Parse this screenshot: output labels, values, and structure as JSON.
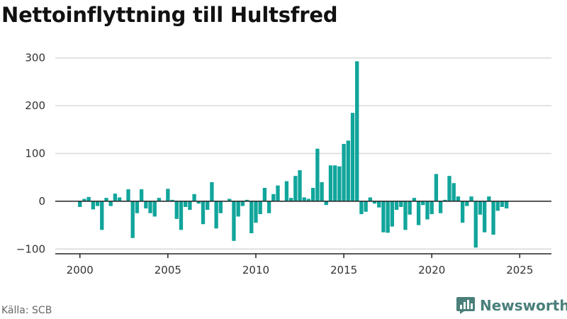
{
  "title": "Nettoinflyttning till Hultsfred",
  "source": "Källa: SCB",
  "brand": {
    "name": "Newsworthy",
    "icon": "chart-bubble-icon"
  },
  "colors": {
    "bar": "#11a59b",
    "grid": "#d9d9d9",
    "axis": "#222222",
    "brand": "#4a7f7a"
  },
  "chart_data": {
    "type": "bar",
    "title": "Nettoinflyttning till Hultsfred",
    "xlabel": "",
    "ylabel": "",
    "grid": true,
    "ylim": [
      -110,
      310
    ],
    "yticks": [
      -100,
      0,
      100,
      200,
      300
    ],
    "ytick_labels": [
      "−100",
      "0",
      "100",
      "200",
      "300"
    ],
    "xlim": [
      1998.6,
      2026.8
    ],
    "xticks": [
      2000,
      2005,
      2010,
      2015,
      2020,
      2025
    ],
    "xtick_labels": [
      "2000",
      "2005",
      "2010",
      "2015",
      "2020",
      "2025"
    ],
    "bar_unit": "quarter",
    "start_quarter": "2000-Q1",
    "values": [
      -12,
      5,
      9,
      -17,
      -10,
      -60,
      7,
      -10,
      16,
      8,
      0,
      25,
      -77,
      -25,
      25,
      -15,
      -25,
      -32,
      7,
      0,
      26,
      3,
      -37,
      -60,
      -12,
      -18,
      15,
      -5,
      -48,
      -18,
      40,
      -57,
      -25,
      0,
      5,
      -83,
      -32,
      -10,
      3,
      -67,
      -45,
      -27,
      28,
      -25,
      15,
      33,
      0,
      42,
      7,
      53,
      65,
      8,
      5,
      28,
      110,
      40,
      -8,
      75,
      75,
      73,
      120,
      127,
      185,
      293,
      -27,
      -22,
      8,
      -5,
      -13,
      -65,
      -66,
      -53,
      -18,
      -12,
      -60,
      -28,
      7,
      -50,
      -8,
      -38,
      -27,
      57,
      -25,
      3,
      53,
      38,
      10,
      -45,
      -10,
      10,
      -97,
      -28,
      -65,
      10,
      -70,
      -20,
      -12,
      -15
    ]
  }
}
